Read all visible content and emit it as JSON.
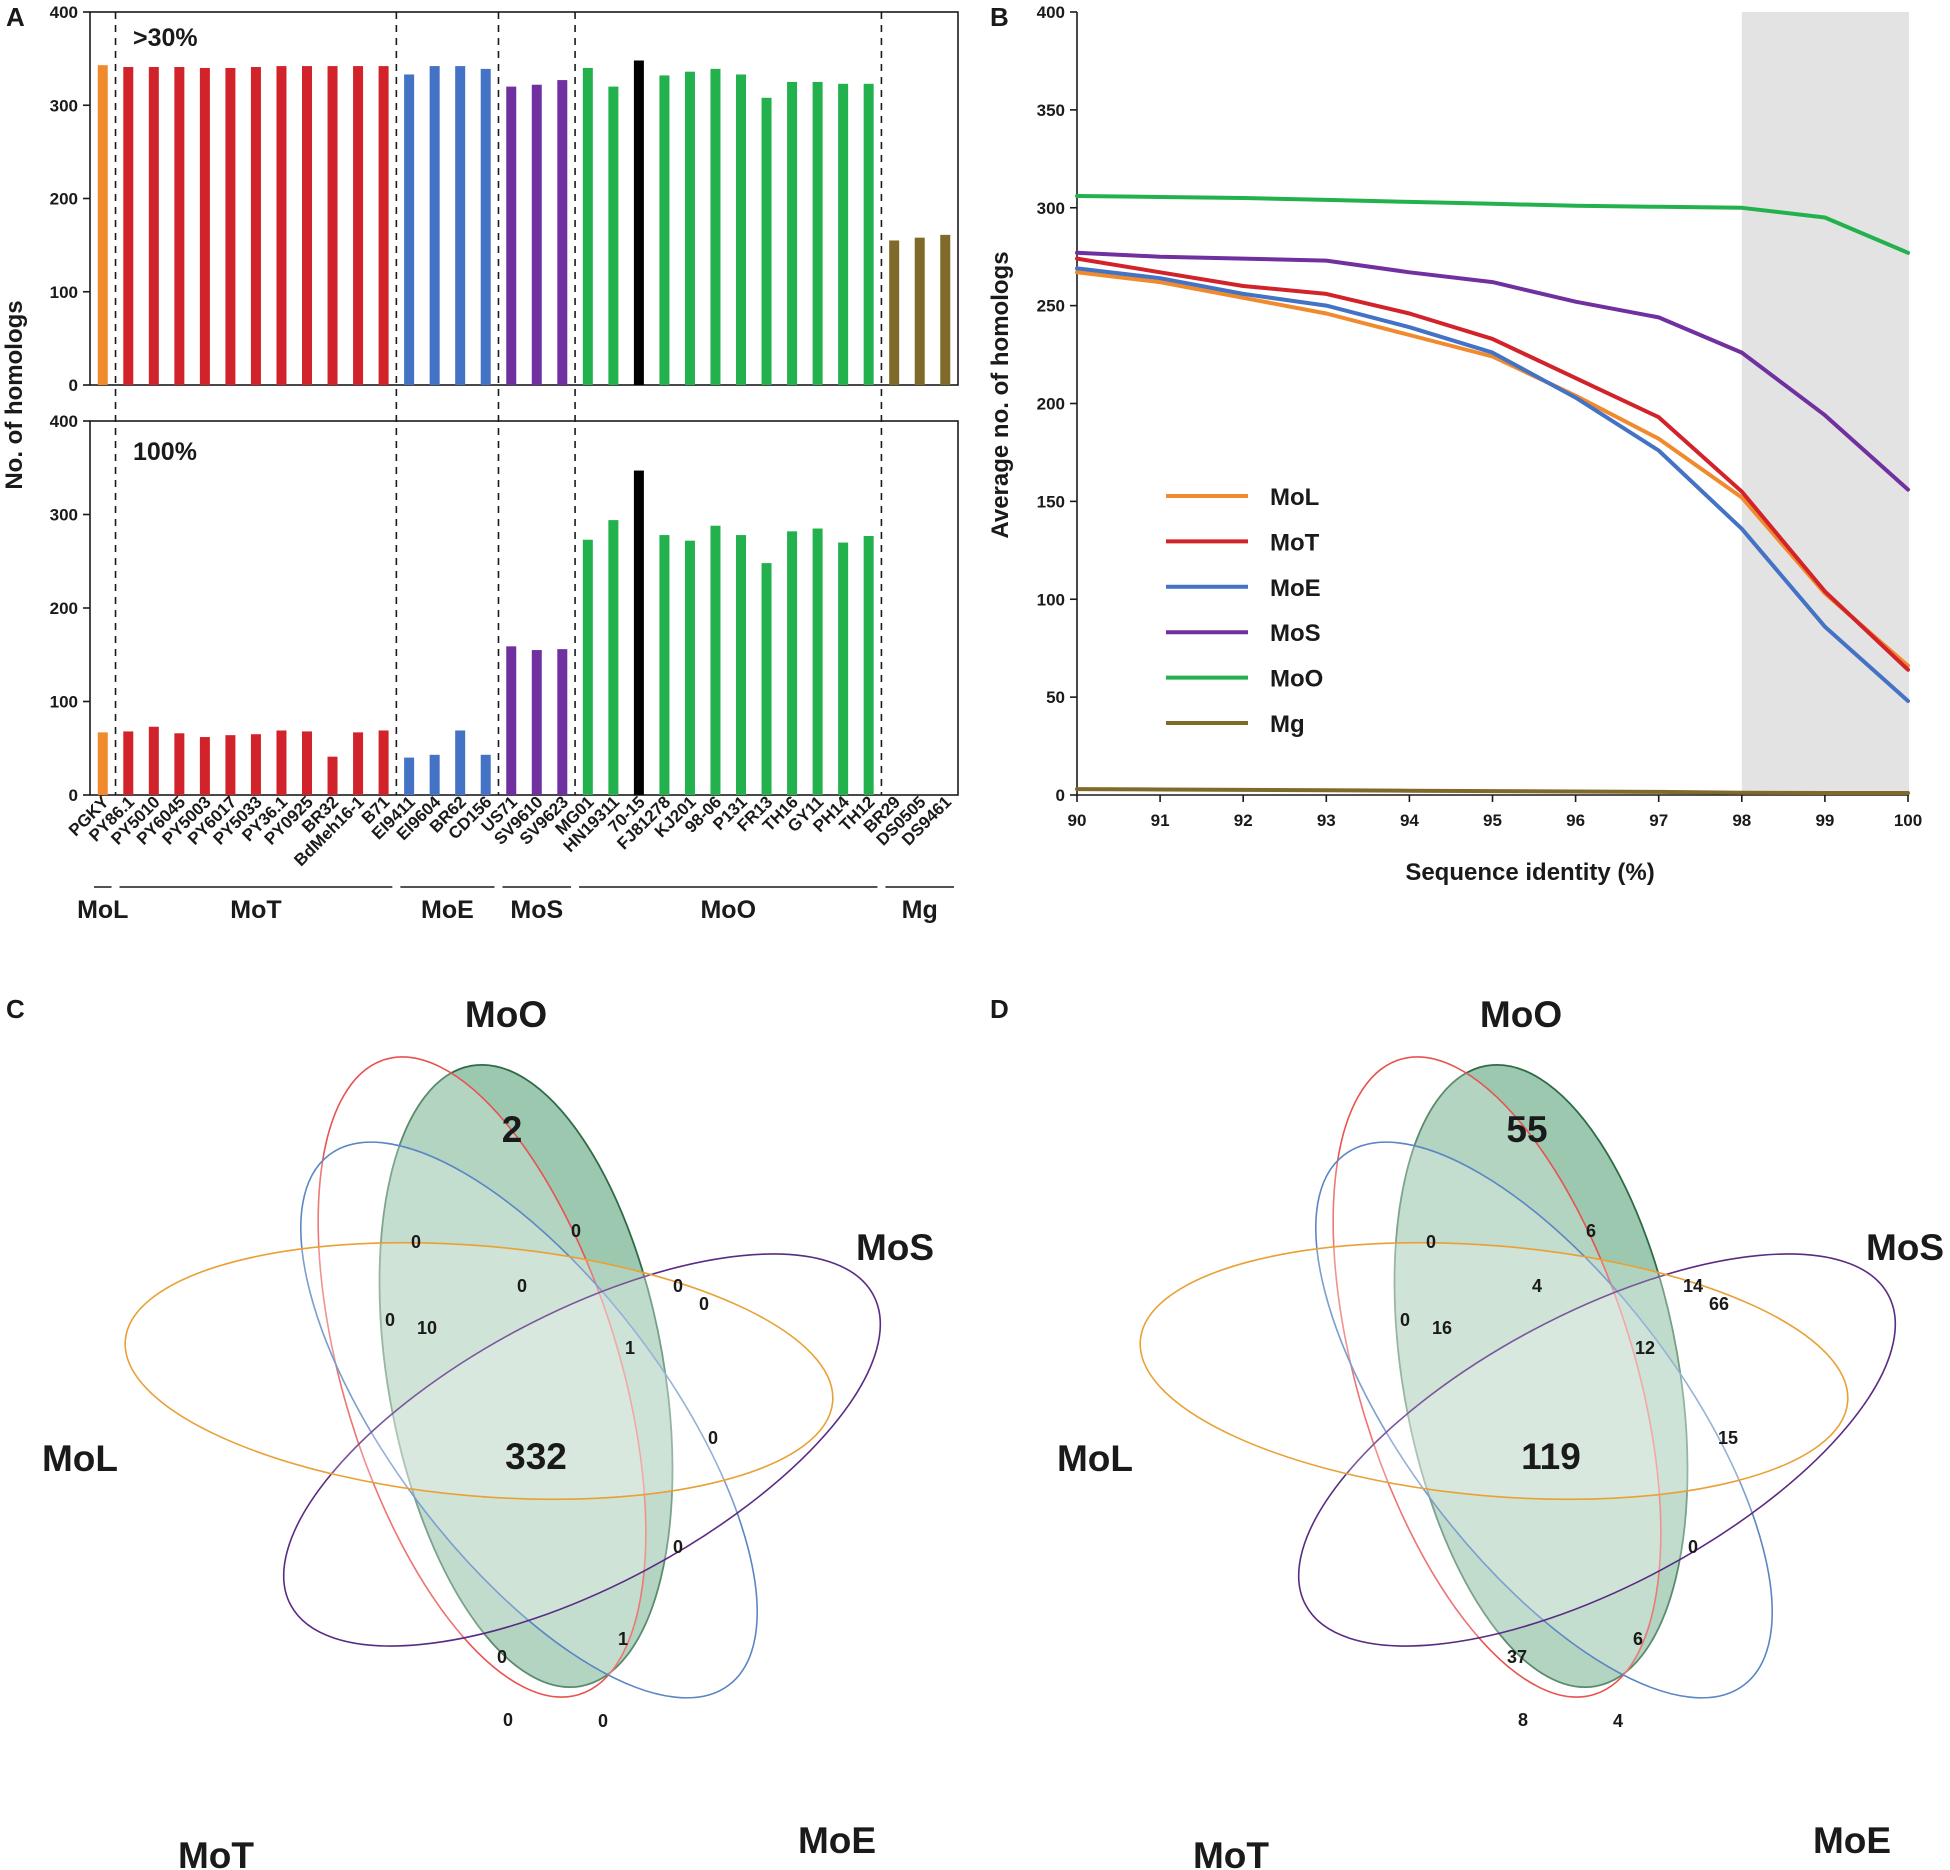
{
  "colors": {
    "MoL": "#f08a2c",
    "MoT": "#d2232a",
    "MoE": "#4472c4",
    "MoS": "#7030a0",
    "MoO": "#22b14c",
    "Mg": "#7f6a2a",
    "highlight": "#000000"
  },
  "panel_letters": [
    "A",
    "B",
    "C",
    "D"
  ],
  "chart_data": [
    {
      "id": "A",
      "type": "bar",
      "ylabel": "No. of homologs",
      "ylim": [
        0,
        400
      ],
      "yticks": [
        0,
        100,
        200,
        300,
        400
      ],
      "categories": [
        "PGKY",
        "PY86.1",
        "PY5010",
        "PY6045",
        "PY5003",
        "PY6017",
        "PY5033",
        "PY36.1",
        "PY0925",
        "BR32",
        "BdMeh16-1",
        "B71",
        "EI9411",
        "EI9604",
        "BR62",
        "CD156",
        "US71",
        "SV9610",
        "SV9623",
        "MG01",
        "HN19311",
        "70-15",
        "FJ81278",
        "KJ201",
        "98-06",
        "P131",
        "FR13",
        "TH16",
        "GY11",
        "PH14",
        "TH12",
        "BR29",
        "DS0505",
        "DS9461"
      ],
      "category_groups": [
        "MoL",
        "MoT",
        "MoT",
        "MoT",
        "MoT",
        "MoT",
        "MoT",
        "MoT",
        "MoT",
        "MoT",
        "MoT",
        "MoT",
        "MoE",
        "MoE",
        "MoE",
        "MoE",
        "MoS",
        "MoS",
        "MoS",
        "MoO",
        "MoO",
        "MoO",
        "MoO",
        "MoO",
        "MoO",
        "MoO",
        "MoO",
        "MoO",
        "MoO",
        "MoO",
        "MoO",
        "Mg",
        "Mg",
        "Mg"
      ],
      "group_labels": [
        {
          "name": "MoL",
          "first": 0,
          "last": 0
        },
        {
          "name": "MoT",
          "first": 1,
          "last": 11
        },
        {
          "name": "MoE",
          "first": 12,
          "last": 15
        },
        {
          "name": "MoS",
          "first": 16,
          "last": 18
        },
        {
          "name": "MoO",
          "first": 19,
          "last": 30
        },
        {
          "name": "Mg",
          "first": 31,
          "last": 33
        }
      ],
      "highlight_index": 21,
      "series": [
        {
          "name": ">30%",
          "values": [
            343,
            341,
            341,
            341,
            340,
            340,
            341,
            342,
            342,
            342,
            342,
            342,
            333,
            342,
            342,
            339,
            320,
            322,
            327,
            340,
            320,
            348,
            332,
            336,
            339,
            333,
            308,
            325,
            325,
            323,
            323,
            155,
            158,
            161
          ]
        },
        {
          "name": "100%",
          "values": [
            67,
            68,
            73,
            66,
            62,
            64,
            65,
            69,
            68,
            41,
            67,
            69,
            40,
            43,
            69,
            43,
            159,
            155,
            156,
            273,
            294,
            347,
            278,
            272,
            288,
            278,
            248,
            282,
            285,
            270,
            277,
            0,
            0,
            0
          ]
        }
      ]
    },
    {
      "id": "B",
      "type": "line",
      "xlabel": "Sequence identity (%)",
      "ylabel": "Average no. of homologs",
      "x": [
        90,
        91,
        92,
        93,
        94,
        95,
        96,
        97,
        98,
        99,
        100
      ],
      "xlim": [
        90,
        100
      ],
      "ylim": [
        0,
        400
      ],
      "yticks": [
        0,
        50,
        100,
        150,
        200,
        250,
        300,
        350,
        400
      ],
      "shaded_x_range": [
        98,
        100
      ],
      "legend_position": "left-middle",
      "series": [
        {
          "name": "MoL",
          "values": [
            267,
            262,
            254,
            246,
            235,
            224,
            204,
            182,
            152,
            103,
            66
          ]
        },
        {
          "name": "MoT",
          "values": [
            274,
            267,
            260,
            256,
            246,
            233,
            213,
            193,
            155,
            104,
            64
          ]
        },
        {
          "name": "MoE",
          "values": [
            269,
            264,
            256,
            250,
            239,
            226,
            203,
            176,
            136,
            86,
            48
          ]
        },
        {
          "name": "MoS",
          "values": [
            277,
            275,
            274,
            273,
            267,
            262,
            252,
            244,
            226,
            194,
            156
          ]
        },
        {
          "name": "MoO",
          "values": [
            306,
            305.5,
            305,
            304,
            303,
            302,
            301,
            300.5,
            300,
            295,
            277
          ]
        },
        {
          "name": "Mg",
          "values": [
            3,
            2.8,
            2.6,
            2.4,
            2.2,
            2,
            1.8,
            1.6,
            1.2,
            1,
            1
          ]
        }
      ]
    },
    {
      "id": "C",
      "type": "venn",
      "sets": [
        "MoO",
        "MoS",
        "MoE",
        "MoT",
        "MoL"
      ],
      "region_values": [
        "2",
        "0",
        "0",
        "0",
        "0",
        "0",
        "10",
        "0",
        "1",
        "0",
        "332",
        "0",
        "0",
        "1",
        "0",
        "0"
      ]
    },
    {
      "id": "D",
      "type": "venn",
      "sets": [
        "MoO",
        "MoS",
        "MoE",
        "MoT",
        "MoL"
      ],
      "region_values": [
        "55",
        "6",
        "0",
        "0",
        "4",
        "14",
        "16",
        "66",
        "12",
        "15",
        "119",
        "0",
        "37",
        "6",
        "8",
        "4"
      ]
    }
  ]
}
